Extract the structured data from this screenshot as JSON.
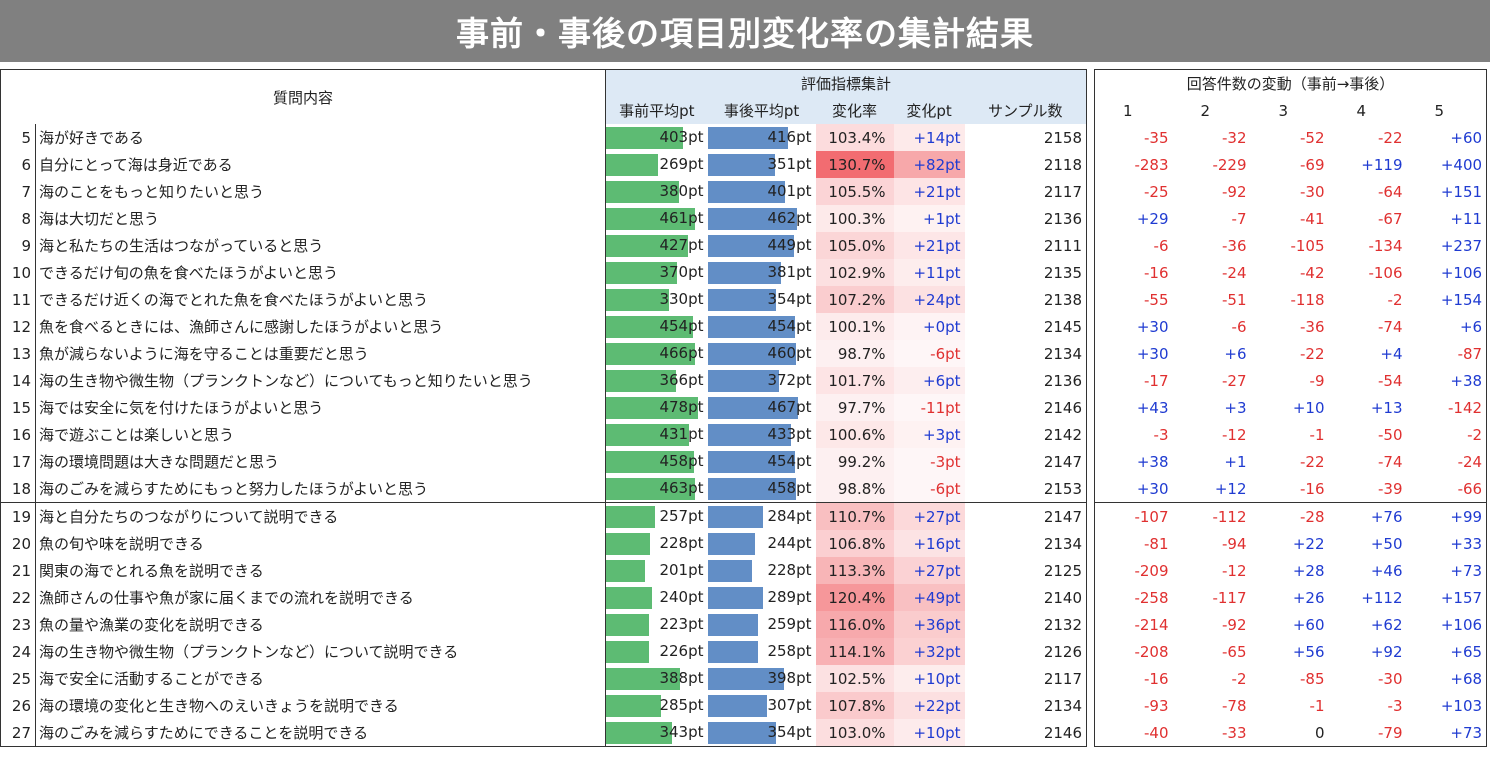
{
  "title": "事前・事後の項目別変化率の集計結果",
  "headers": {
    "question": "質問内容",
    "group_eval": "評価指標集計",
    "pre_avg": "事前平均pt",
    "post_avg": "事後平均pt",
    "rate": "変化率",
    "change": "変化pt",
    "sample": "サンプル数",
    "group_answers": "回答件数の変動（事前→事後）",
    "answer_cols": [
      "1",
      "2",
      "3",
      "4",
      "5"
    ]
  },
  "rows": [
    {
      "no": "5",
      "q": "海が好きである",
      "pre": "403",
      "post": "416",
      "rate": "103.4%",
      "chg": "+14pt",
      "n": "2158",
      "d": [
        "-35",
        "-32",
        "-52",
        "-22",
        "+60"
      ]
    },
    {
      "no": "6",
      "q": "自分にとって海は身近である",
      "pre": "269",
      "post": "351",
      "rate": "130.7%",
      "chg": "+82pt",
      "n": "2118",
      "d": [
        "-283",
        "-229",
        "-69",
        "+119",
        "+400"
      ]
    },
    {
      "no": "7",
      "q": "海のことをもっと知りたいと思う",
      "pre": "380",
      "post": "401",
      "rate": "105.5%",
      "chg": "+21pt",
      "n": "2117",
      "d": [
        "-25",
        "-92",
        "-30",
        "-64",
        "+151"
      ]
    },
    {
      "no": "8",
      "q": "海は大切だと思う",
      "pre": "461",
      "post": "462",
      "rate": "100.3%",
      "chg": "+1pt",
      "n": "2136",
      "d": [
        "+29",
        "-7",
        "-41",
        "-67",
        "+11"
      ]
    },
    {
      "no": "9",
      "q": "海と私たちの生活はつながっていると思う",
      "pre": "427",
      "post": "449",
      "rate": "105.0%",
      "chg": "+21pt",
      "n": "2111",
      "d": [
        "-6",
        "-36",
        "-105",
        "-134",
        "+237"
      ]
    },
    {
      "no": "10",
      "q": "できるだけ旬の魚を食べたほうがよいと思う",
      "pre": "370",
      "post": "381",
      "rate": "102.9%",
      "chg": "+11pt",
      "n": "2135",
      "d": [
        "-16",
        "-24",
        "-42",
        "-106",
        "+106"
      ]
    },
    {
      "no": "11",
      "q": "できるだけ近くの海でとれた魚を食べたほうがよいと思う",
      "pre": "330",
      "post": "354",
      "rate": "107.2%",
      "chg": "+24pt",
      "n": "2138",
      "d": [
        "-55",
        "-51",
        "-118",
        "-2",
        "+154"
      ]
    },
    {
      "no": "12",
      "q": "魚を食べるときには、漁師さんに感謝したほうがよいと思う",
      "pre": "454",
      "post": "454",
      "rate": "100.1%",
      "chg": "+0pt",
      "n": "2145",
      "d": [
        "+30",
        "-6",
        "-36",
        "-74",
        "+6"
      ]
    },
    {
      "no": "13",
      "q": "魚が減らないように海を守ることは重要だと思う",
      "pre": "466",
      "post": "460",
      "rate": "98.7%",
      "chg": "-6pt",
      "n": "2134",
      "d": [
        "+30",
        "+6",
        "-22",
        "+4",
        "-87"
      ]
    },
    {
      "no": "14",
      "q": "海の生き物や微生物（プランクトンなど）についてもっと知りたいと思う",
      "pre": "366",
      "post": "372",
      "rate": "101.7%",
      "chg": "+6pt",
      "n": "2136",
      "d": [
        "-17",
        "-27",
        "-9",
        "-54",
        "+38"
      ]
    },
    {
      "no": "15",
      "q": "海では安全に気を付けたほうがよいと思う",
      "pre": "478",
      "post": "467",
      "rate": "97.7%",
      "chg": "-11pt",
      "n": "2146",
      "d": [
        "+43",
        "+3",
        "+10",
        "+13",
        "-142"
      ]
    },
    {
      "no": "16",
      "q": "海で遊ぶことは楽しいと思う",
      "pre": "431",
      "post": "433",
      "rate": "100.6%",
      "chg": "+3pt",
      "n": "2142",
      "d": [
        "-3",
        "-12",
        "-1",
        "-50",
        "-2"
      ]
    },
    {
      "no": "17",
      "q": "海の環境問題は大きな問題だと思う",
      "pre": "458",
      "post": "454",
      "rate": "99.2%",
      "chg": "-3pt",
      "n": "2147",
      "d": [
        "+38",
        "+1",
        "-22",
        "-74",
        "-24"
      ]
    },
    {
      "no": "18",
      "q": "海のごみを減らすためにもっと努力したほうがよいと思う",
      "pre": "463",
      "post": "458",
      "rate": "98.8%",
      "chg": "-6pt",
      "n": "2153",
      "d": [
        "+30",
        "+12",
        "-16",
        "-39",
        "-66"
      ]
    },
    {
      "no": "19",
      "q": "海と自分たちのつながりについて説明できる",
      "pre": "257",
      "post": "284",
      "rate": "110.7%",
      "chg": "+27pt",
      "n": "2147",
      "d": [
        "-107",
        "-112",
        "-28",
        "+76",
        "+99"
      ]
    },
    {
      "no": "20",
      "q": "魚の旬や味を説明できる",
      "pre": "228",
      "post": "244",
      "rate": "106.8%",
      "chg": "+16pt",
      "n": "2134",
      "d": [
        "-81",
        "-94",
        "+22",
        "+50",
        "+33"
      ]
    },
    {
      "no": "21",
      "q": "関東の海でとれる魚を説明できる",
      "pre": "201",
      "post": "228",
      "rate": "113.3%",
      "chg": "+27pt",
      "n": "2125",
      "d": [
        "-209",
        "-12",
        "+28",
        "+46",
        "+73"
      ]
    },
    {
      "no": "22",
      "q": "漁師さんの仕事や魚が家に届くまでの流れを説明できる",
      "pre": "240",
      "post": "289",
      "rate": "120.4%",
      "chg": "+49pt",
      "n": "2140",
      "d": [
        "-258",
        "-117",
        "+26",
        "+112",
        "+157"
      ]
    },
    {
      "no": "23",
      "q": "魚の量や漁業の変化を説明できる",
      "pre": "223",
      "post": "259",
      "rate": "116.0%",
      "chg": "+36pt",
      "n": "2132",
      "d": [
        "-214",
        "-92",
        "+60",
        "+62",
        "+106"
      ]
    },
    {
      "no": "24",
      "q": "海の生き物や微生物（プランクトンなど）について説明できる",
      "pre": "226",
      "post": "258",
      "rate": "114.1%",
      "chg": "+32pt",
      "n": "2126",
      "d": [
        "-208",
        "-65",
        "+56",
        "+92",
        "+65"
      ]
    },
    {
      "no": "25",
      "q": "海で安全に活動することができる",
      "pre": "388",
      "post": "398",
      "rate": "102.5%",
      "chg": "+10pt",
      "n": "2117",
      "d": [
        "-16",
        "-2",
        "-85",
        "-30",
        "+68"
      ]
    },
    {
      "no": "26",
      "q": "海の環境の変化と生き物へのえいきょうを説明できる",
      "pre": "285",
      "post": "307",
      "rate": "107.8%",
      "chg": "+22pt",
      "n": "2134",
      "d": [
        "-93",
        "-78",
        "-1",
        "-3",
        "+103"
      ]
    },
    {
      "no": "27",
      "q": "海のごみを減らすためにできることを説明できる",
      "pre": "343",
      "post": "354",
      "rate": "103.0%",
      "chg": "+10pt",
      "n": "2146",
      "d": [
        "-40",
        "-33",
        "0",
        "-79",
        "+73"
      ]
    }
  ],
  "unit": "pt",
  "colors": {
    "pre_bar": "#5dbb73",
    "post_bar": "#628ec6",
    "positive": "#1f3bd1",
    "negative": "#e03030",
    "header_bg": "#dde9f5",
    "title_bg": "#808080"
  }
}
